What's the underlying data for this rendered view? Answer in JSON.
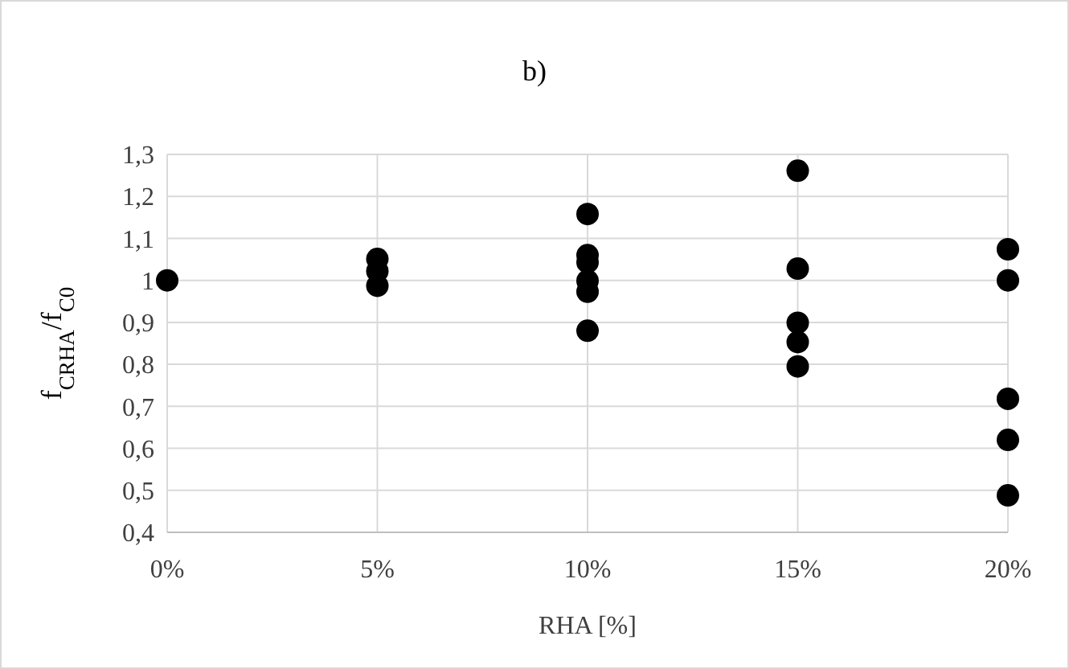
{
  "chart_data": {
    "type": "scatter",
    "title": "b)",
    "xlabel": "RHA [%]",
    "ylabel": "f$_{CRHA}$/f$_{C0}$",
    "x": [
      0,
      5,
      5,
      5,
      10,
      10,
      10,
      10,
      10,
      10,
      15,
      15,
      15,
      15,
      15,
      20,
      20,
      20,
      20,
      20
    ],
    "series": [
      {
        "color": "#000000",
        "values": [
          1,
          1.051,
          1.022,
          0.987,
          1.158,
          1.06,
          1.043,
          0.999,
          0.973,
          0.88,
          1.261,
          1.028,
          0.899,
          0.853,
          0.795,
          1.074,
          1.0,
          0.718,
          0.62,
          0.488
        ]
      }
    ],
    "xlim": [
      0,
      20
    ],
    "xticks": [
      {
        "value": 0,
        "label": "0%"
      },
      {
        "value": 5,
        "label": "5%"
      },
      {
        "value": 10,
        "label": "10%"
      },
      {
        "value": 15,
        "label": "15%"
      },
      {
        "value": 20,
        "label": "20%"
      }
    ],
    "ylim": [
      0.4,
      1.3
    ],
    "yticks": [
      {
        "value": 0.4,
        "label": "0,4"
      },
      {
        "value": 0.5,
        "label": "0,5"
      },
      {
        "value": 0.6,
        "label": "0,6"
      },
      {
        "value": 0.7,
        "label": "0,7"
      },
      {
        "value": 0.8,
        "label": "0,8"
      },
      {
        "value": 0.9,
        "label": "0,9"
      },
      1,
      {
        "value": 1.1,
        "label": "1,1"
      },
      {
        "value": 1.2,
        "label": "1,2"
      },
      {
        "value": 1.3,
        "label": "1,3"
      }
    ],
    "grid": true,
    "marker": "circle"
  }
}
